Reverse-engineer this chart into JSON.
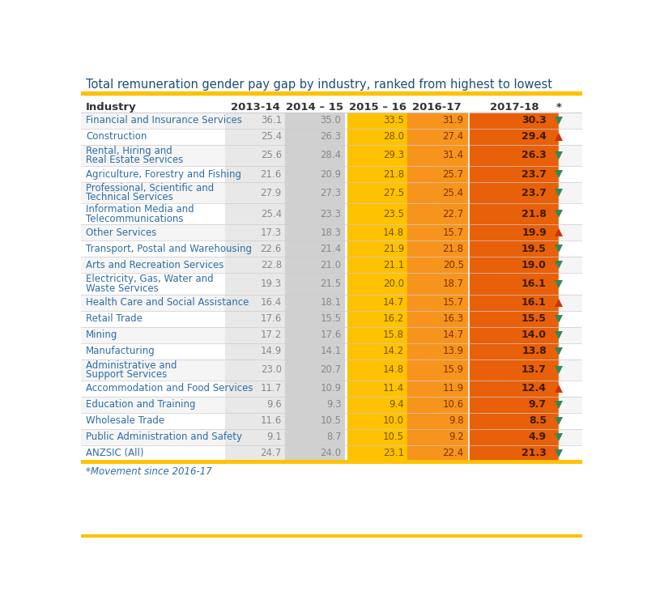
{
  "title": "Total remuneration gender pay gap by industry, ranked from highest to lowest",
  "footnote": "*Movement since 2016-17",
  "col_headers": [
    "Industry",
    "2013-14",
    "2014 – 15",
    "2015 – 16",
    "2016-17",
    "2017-18",
    "*"
  ],
  "rows": [
    {
      "industry": "Financial and Insurance Services",
      "v1": "36.1",
      "v2": "35.0",
      "v3": "33.5",
      "v4": "31.9",
      "v5": "30.3",
      "arrow": "down",
      "multiline": false
    },
    {
      "industry": "Construction",
      "v1": "25.4",
      "v2": "26.3",
      "v3": "28.0",
      "v4": "27.4",
      "v5": "29.4",
      "arrow": "up",
      "multiline": false
    },
    {
      "industry": "Rental, Hiring and\nReal Estate Services",
      "v1": "25.6",
      "v2": "28.4",
      "v3": "29.3",
      "v4": "31.4",
      "v5": "26.3",
      "arrow": "down",
      "multiline": true
    },
    {
      "industry": "Agriculture, Forestry and Fishing",
      "v1": "21.6",
      "v2": "20.9",
      "v3": "21.8",
      "v4": "25.7",
      "v5": "23.7",
      "arrow": "down",
      "multiline": false
    },
    {
      "industry": "Professional, Scientific and\nTechnical Services",
      "v1": "27.9",
      "v2": "27.3",
      "v3": "27.5",
      "v4": "25.4",
      "v5": "23.7",
      "arrow": "down",
      "multiline": true
    },
    {
      "industry": "Information Media and\nTelecommunications",
      "v1": "25.4",
      "v2": "23.3",
      "v3": "23.5",
      "v4": "22.7",
      "v5": "21.8",
      "arrow": "down",
      "multiline": true
    },
    {
      "industry": "Other Services",
      "v1": "17.3",
      "v2": "18.3",
      "v3": "14.8",
      "v4": "15.7",
      "v5": "19.9",
      "arrow": "up",
      "multiline": false
    },
    {
      "industry": "Transport, Postal and Warehousing",
      "v1": "22.6",
      "v2": "21.4",
      "v3": "21.9",
      "v4": "21.8",
      "v5": "19.5",
      "arrow": "down",
      "multiline": false
    },
    {
      "industry": "Arts and Recreation Services",
      "v1": "22.8",
      "v2": "21.0",
      "v3": "21.1",
      "v4": "20.5",
      "v5": "19.0",
      "arrow": "down",
      "multiline": false
    },
    {
      "industry": "Electricity, Gas, Water and\nWaste Services",
      "v1": "19.3",
      "v2": "21.5",
      "v3": "20.0",
      "v4": "18.7",
      "v5": "16.1",
      "arrow": "down",
      "multiline": true
    },
    {
      "industry": "Health Care and Social Assistance",
      "v1": "16.4",
      "v2": "18.1",
      "v3": "14.7",
      "v4": "15.7",
      "v5": "16.1",
      "arrow": "up",
      "multiline": false
    },
    {
      "industry": "Retail Trade",
      "v1": "17.6",
      "v2": "15.5",
      "v3": "16.2",
      "v4": "16.3",
      "v5": "15.5",
      "arrow": "down",
      "multiline": false
    },
    {
      "industry": "Mining",
      "v1": "17.2",
      "v2": "17.6",
      "v3": "15.8",
      "v4": "14.7",
      "v5": "14.0",
      "arrow": "down",
      "multiline": false
    },
    {
      "industry": "Manufacturing",
      "v1": "14.9",
      "v2": "14.1",
      "v3": "14.2",
      "v4": "13.9",
      "v5": "13.8",
      "arrow": "down",
      "multiline": false
    },
    {
      "industry": "Administrative and\nSupport Services",
      "v1": "23.0",
      "v2": "20.7",
      "v3": "14.8",
      "v4": "15.9",
      "v5": "13.7",
      "arrow": "down",
      "multiline": true
    },
    {
      "industry": "Accommodation and Food Services",
      "v1": "11.7",
      "v2": "10.9",
      "v3": "11.4",
      "v4": "11.9",
      "v5": "12.4",
      "arrow": "up",
      "multiline": false
    },
    {
      "industry": "Education and Training",
      "v1": "9.6",
      "v2": "9.3",
      "v3": "9.4",
      "v4": "10.6",
      "v5": "9.7",
      "arrow": "down",
      "multiline": false
    },
    {
      "industry": "Wholesale Trade",
      "v1": "11.6",
      "v2": "10.5",
      "v3": "10.0",
      "v4": "9.8",
      "v5": "8.5",
      "arrow": "down",
      "multiline": false
    },
    {
      "industry": "Public Administration and Safety",
      "v1": "9.1",
      "v2": "8.7",
      "v3": "10.5",
      "v4": "9.2",
      "v5": "4.9",
      "arrow": "down",
      "multiline": false
    },
    {
      "industry": "ANZSIC (All)",
      "v1": "24.7",
      "v2": "24.0",
      "v3": "23.1",
      "v4": "22.4",
      "v5": "21.3",
      "arrow": "down",
      "multiline": false
    }
  ],
  "title_color": "#1F4E79",
  "row_text_color": "#2E6DA4",
  "header_text_color": "#333333",
  "v1_bg": "#e8e8e8",
  "v2_bg": "#d0d0d0",
  "v3_bg": "#FFC200",
  "v4_bg": "#F7941D",
  "v5_bg": "#E8600A",
  "v1_text": "#888888",
  "v2_text": "#888888",
  "v3_text": "#7A5200",
  "v4_text": "#7A3200",
  "v5_text": "#3D1A00",
  "gold_bar": "#FFC200",
  "arrow_up_color": "#CC3300",
  "arrow_down_color": "#2E8B57",
  "row_bg_even": "#F5F5F5",
  "row_bg_odd": "#FFFFFF",
  "divider_color": "#CCCCCC"
}
